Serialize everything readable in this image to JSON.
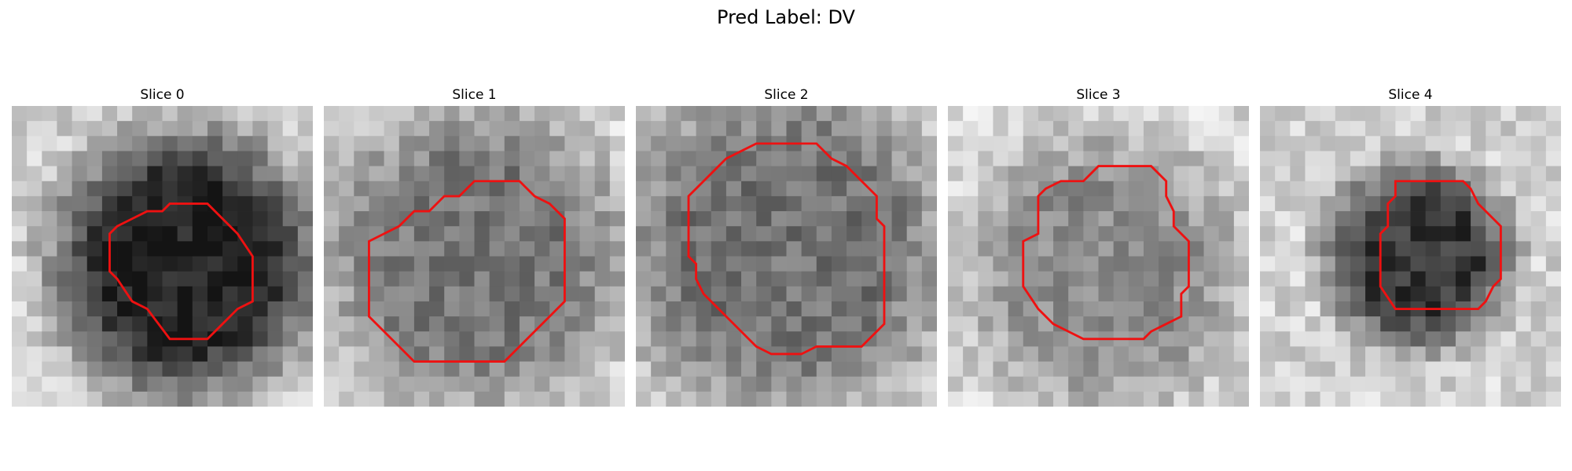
{
  "figure": {
    "title": "Pred Label: DV"
  },
  "slices": [
    {
      "title": "Slice 0",
      "seed": 11,
      "bg": 205,
      "blob_dark": 30,
      "blob_radius": 9.0,
      "blob_cx": 11.5,
      "blob_cy": 10.5,
      "contour": [
        [
          8,
          7.5
        ],
        [
          9,
          7
        ],
        [
          10,
          7
        ],
        [
          10.5,
          6.5
        ],
        [
          13,
          6.5
        ],
        [
          15,
          8.5
        ],
        [
          16,
          10
        ],
        [
          16,
          13
        ],
        [
          15,
          13.5
        ],
        [
          14.5,
          14
        ],
        [
          14,
          14.5
        ],
        [
          13,
          15.5
        ],
        [
          10.5,
          15.5
        ],
        [
          9,
          13.5
        ],
        [
          8,
          13
        ],
        [
          7,
          11.5
        ],
        [
          6.5,
          11
        ],
        [
          6.5,
          8.5
        ],
        [
          7,
          8
        ]
      ]
    },
    {
      "title": "Slice 1",
      "seed": 23,
      "bg": 215,
      "blob_dark": 120,
      "blob_radius": 10.5,
      "blob_cx": 10,
      "blob_cy": 10,
      "contour": [
        [
          5,
          8
        ],
        [
          6,
          7
        ],
        [
          7,
          7
        ],
        [
          8,
          6
        ],
        [
          9,
          6
        ],
        [
          10,
          5
        ],
        [
          13,
          5
        ],
        [
          14,
          6
        ],
        [
          15,
          6.5
        ],
        [
          16,
          7.5
        ],
        [
          16,
          13
        ],
        [
          15,
          14
        ],
        [
          14,
          15
        ],
        [
          13,
          16
        ],
        [
          12,
          17
        ],
        [
          6,
          17
        ],
        [
          4,
          15
        ],
        [
          3,
          14
        ],
        [
          3,
          9
        ],
        [
          4,
          8.5
        ]
      ]
    },
    {
      "title": "Slice 2",
      "seed": 37,
      "bg": 210,
      "blob_dark": 115,
      "blob_radius": 11.5,
      "blob_cx": 10,
      "blob_cy": 9.5,
      "contour": [
        [
          5,
          4.5
        ],
        [
          6,
          3.5
        ],
        [
          7,
          3
        ],
        [
          8,
          2.5
        ],
        [
          12,
          2.5
        ],
        [
          13,
          3.5
        ],
        [
          14,
          4
        ],
        [
          15,
          5
        ],
        [
          16,
          6
        ],
        [
          16,
          7.5
        ],
        [
          16.5,
          8
        ],
        [
          16.5,
          14.5
        ],
        [
          15,
          16
        ],
        [
          12,
          16
        ],
        [
          11,
          16.5
        ],
        [
          9,
          16.5
        ],
        [
          8,
          16
        ],
        [
          7,
          15
        ],
        [
          6,
          14
        ],
        [
          5,
          13
        ],
        [
          4.5,
          12.5
        ],
        [
          4,
          11.5
        ],
        [
          4,
          10.5
        ],
        [
          3.5,
          10
        ],
        [
          3.5,
          6
        ],
        [
          4.5,
          5
        ]
      ]
    },
    {
      "title": "Slice 3",
      "seed": 41,
      "bg": 215,
      "blob_dark": 140,
      "blob_radius": 9.5,
      "blob_cx": 10.5,
      "blob_cy": 11,
      "contour": [
        [
          6.5,
          5.5
        ],
        [
          7.5,
          5
        ],
        [
          9,
          5
        ],
        [
          9.5,
          4.5
        ],
        [
          10,
          4
        ],
        [
          13.5,
          4
        ],
        [
          14.5,
          5
        ],
        [
          14.5,
          6
        ],
        [
          15,
          7
        ],
        [
          15,
          8
        ],
        [
          16,
          9
        ],
        [
          16,
          12
        ],
        [
          15.5,
          12.5
        ],
        [
          15.5,
          14
        ],
        [
          14.5,
          14.5
        ],
        [
          13.5,
          15
        ],
        [
          13,
          15.5
        ],
        [
          9,
          15.5
        ],
        [
          8,
          15
        ],
        [
          7,
          14.5
        ],
        [
          6,
          13.5
        ],
        [
          5,
          12
        ],
        [
          5,
          9
        ],
        [
          6,
          8.5
        ],
        [
          6,
          6
        ]
      ]
    },
    {
      "title": "Slice 4",
      "seed": 53,
      "bg": 210,
      "blob_dark": 55,
      "blob_radius": 6.5,
      "blob_cx": 10.5,
      "blob_cy": 10,
      "contour": [
        [
          9,
          5
        ],
        [
          9,
          6
        ],
        [
          8.5,
          6.5
        ],
        [
          8.5,
          8
        ],
        [
          8,
          8.5
        ],
        [
          8,
          12
        ],
        [
          9,
          13.5
        ],
        [
          14.5,
          13.5
        ],
        [
          15,
          13
        ],
        [
          15.5,
          12
        ],
        [
          16,
          11.5
        ],
        [
          16,
          8
        ],
        [
          15.5,
          7.5
        ],
        [
          14.5,
          6.5
        ],
        [
          14,
          5.5
        ],
        [
          13.5,
          5
        ],
        [
          9,
          5
        ]
      ]
    }
  ]
}
